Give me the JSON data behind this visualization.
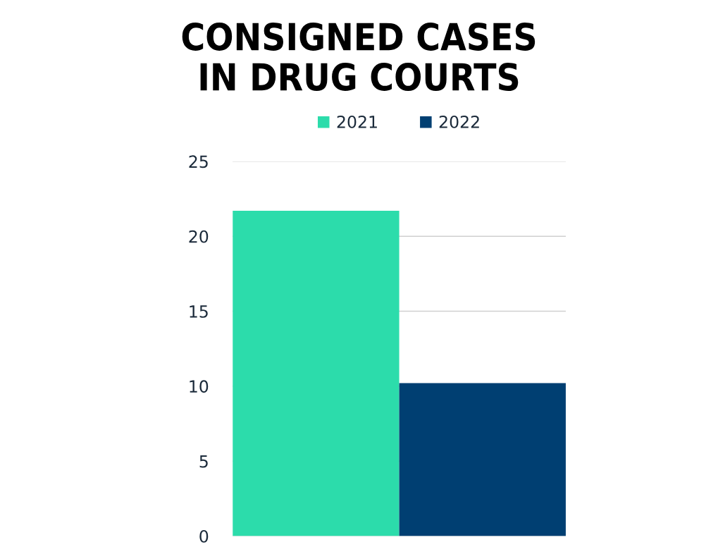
{
  "chart_data": {
    "type": "bar",
    "title": "CONSIGNED CASES\nIN DRUG COURTS",
    "categories": [
      null
    ],
    "series": [
      {
        "name": "2021",
        "color": "#2cdcab",
        "values": [
          21.7
        ]
      },
      {
        "name": "2022",
        "color": "#003f72",
        "values": [
          10.2
        ]
      }
    ],
    "ylim": [
      0,
      25
    ],
    "yticks": [
      0,
      5,
      10,
      15,
      20,
      25
    ],
    "grid": "y",
    "legend": "top",
    "tick_labels": "y"
  }
}
